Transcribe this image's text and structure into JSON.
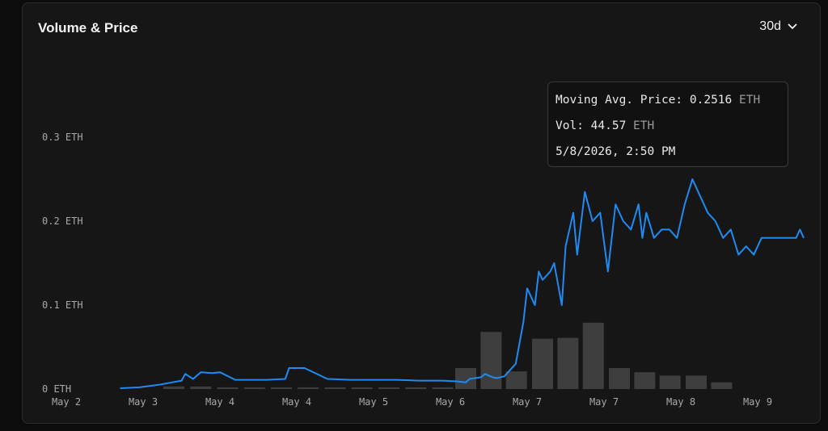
{
  "card": {
    "title": "Volume & Price",
    "range_label": "30d",
    "range_icon": "chevron-down-icon"
  },
  "tooltip": {
    "price_label": "Moving Avg. Price:",
    "price_value": "0.2516",
    "price_unit": "ETH",
    "vol_label": "Vol:",
    "vol_value": "44.57",
    "vol_unit": "ETH",
    "datetime": "5/8/2026, 2:50 PM"
  },
  "colors": {
    "line": "#1f8bf2",
    "bar": "#3e3e3e",
    "background": "#161616"
  },
  "chart_data": {
    "type": "bar+line",
    "x_ticks": [
      "May 2",
      "May 3",
      "May 4",
      "May 4",
      "May 5",
      "May 6",
      "May 7",
      "May 7",
      "May 8",
      "May 9"
    ],
    "y_ticks": [
      "0 ETH",
      "0.1 ETH",
      "0.2 ETH",
      "0.3 ETH"
    ],
    "y_range": [
      0,
      0.4
    ],
    "bars": {
      "x": [
        2.4,
        2.75,
        3.1,
        3.45,
        3.8,
        4.15,
        4.5,
        4.85,
        5.2,
        5.55,
        5.9,
        6.2,
        6.53,
        6.86,
        7.2,
        7.53,
        7.86,
        8.2,
        8.53,
        8.86,
        9.2,
        9.53
      ],
      "values": [
        0.003,
        0.003,
        0.002,
        0.002,
        0.002,
        0.002,
        0.002,
        0.002,
        0.002,
        0.002,
        0.002,
        0.025,
        0.068,
        0.021,
        0.06,
        0.061,
        0.079,
        0.025,
        0.02,
        0.016,
        0.016,
        0.008
      ]
    },
    "price_line": {
      "x": [
        1.7,
        1.95,
        2.2,
        2.5,
        2.55,
        2.65,
        2.75,
        2.9,
        3.0,
        3.2,
        3.4,
        3.6,
        3.85,
        3.9,
        4.1,
        4.4,
        4.7,
        5.0,
        5.3,
        5.6,
        5.9,
        6.1,
        6.2,
        6.25,
        6.4,
        6.45,
        6.55,
        6.6,
        6.7,
        6.85,
        6.95,
        7.0,
        7.1,
        7.15,
        7.2,
        7.3,
        7.35,
        7.45,
        7.5,
        7.6,
        7.65,
        7.75,
        7.85,
        7.95,
        8.05,
        8.15,
        8.25,
        8.35,
        8.45,
        8.5,
        8.55,
        8.65,
        8.75,
        8.85,
        8.95,
        9.05,
        9.15,
        9.25,
        9.35,
        9.45,
        9.55,
        9.65,
        9.75,
        9.85,
        9.95,
        10.05,
        10.2,
        10.35,
        10.5,
        10.55,
        10.6
      ],
      "values": [
        0.001,
        0.002,
        0.005,
        0.01,
        0.018,
        0.012,
        0.02,
        0.019,
        0.02,
        0.011,
        0.011,
        0.011,
        0.012,
        0.025,
        0.025,
        0.012,
        0.011,
        0.011,
        0.011,
        0.01,
        0.01,
        0.009,
        0.008,
        0.012,
        0.014,
        0.018,
        0.014,
        0.013,
        0.015,
        0.03,
        0.08,
        0.12,
        0.1,
        0.14,
        0.13,
        0.14,
        0.15,
        0.1,
        0.17,
        0.21,
        0.16,
        0.235,
        0.2,
        0.21,
        0.14,
        0.22,
        0.2,
        0.19,
        0.22,
        0.18,
        0.21,
        0.18,
        0.19,
        0.19,
        0.18,
        0.22,
        0.25,
        0.23,
        0.21,
        0.2,
        0.18,
        0.19,
        0.16,
        0.17,
        0.16,
        0.18,
        0.18,
        0.18,
        0.18,
        0.19,
        0.18
      ]
    },
    "xlabel": "",
    "ylabel": ""
  }
}
